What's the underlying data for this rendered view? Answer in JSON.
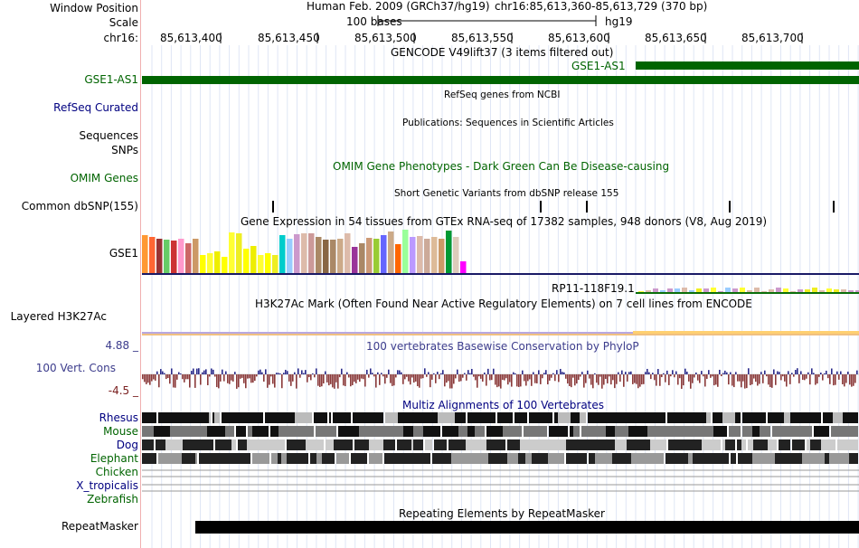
{
  "header": {
    "window_position_label": "Window Position",
    "scale_label": "Scale",
    "chrom_label": "chr16:",
    "assembly": "Human Feb. 2009 (GRCh37/hg19)",
    "position": "chr16:85,613,360-85,613,729 (370 bp)",
    "scale_text": "100 bases",
    "scale_db": "hg19",
    "ruler_ticks": [
      "85,613,400",
      "85,613,450",
      "85,613,500",
      "85,613,550",
      "85,613,600",
      "85,613,650",
      "85,613,700"
    ]
  },
  "tracks": {
    "gencode": {
      "title": "GENCODE V49lift37 (3 items filtered out)",
      "feature": "GSE1-AS1",
      "label": "GSE1-AS1",
      "color": "#006400"
    },
    "refseq": {
      "title": "RefSeq genes from NCBI",
      "label": "RefSeq Curated"
    },
    "publications": {
      "title": "Publications: Sequences in Scientific Articles",
      "label1": "Sequences",
      "label2": "SNPs"
    },
    "omim": {
      "title": "OMIM Gene Phenotypes - Dark Green Can Be Disease-causing",
      "label": "OMIM Genes"
    },
    "dbsnp": {
      "title": "Short Genetic Variants from dbSNP release 155",
      "label": "Common dbSNP(155)"
    },
    "gtex": {
      "title": "Gene Expression in 54 tissues from GTEx RNA-seq of 17382 samples, 948 donors (V8, Aug 2019)",
      "label": "GSE1",
      "feature2": "RP11-118F19.1"
    },
    "h3k27ac": {
      "title": "H3K27Ac Mark (Often Found Near Active Regulatory Elements) on 7 cell lines from ENCODE",
      "label": "Layered H3K27Ac"
    },
    "phylop": {
      "title": "100 vertebrates Basewise Conservation by PhyloP",
      "label": "100 Vert. Cons",
      "max": "4.88 _",
      "min": "-4.5 _"
    },
    "multiz": {
      "title": "Multiz Alignments of 100 Vertebrates",
      "species": [
        "Rhesus",
        "Mouse",
        "Dog",
        "Elephant",
        "Chicken",
        "X_tropicalis",
        "Zebrafish"
      ]
    },
    "repeatmasker": {
      "title": "Repeating Elements by RepeatMasker",
      "label": "RepeatMasker"
    }
  }
}
